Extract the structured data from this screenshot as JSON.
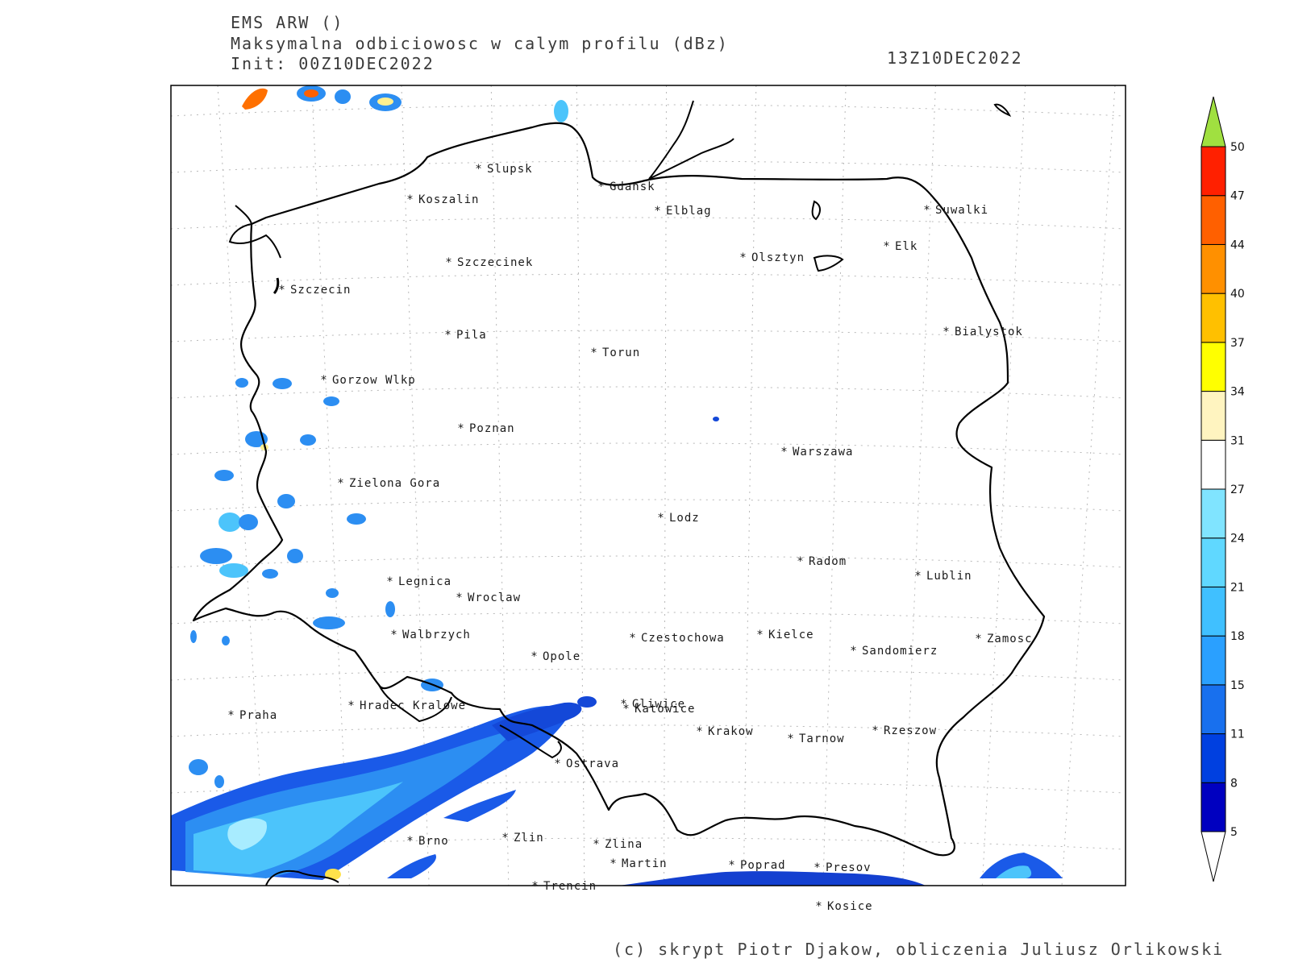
{
  "header": {
    "model": "EMS ARW ()",
    "variable": "Maksymalna odbiciowosc w calym profilu (dBz)",
    "init": "Init: 00Z10DEC2022",
    "valid_time": "13Z10DEC2022"
  },
  "footer": "(c) skrypt Piotr Djakow, obliczenia Juliusz Orlikowski",
  "colorbar": {
    "ticks": [
      "5",
      "8",
      "11",
      "15",
      "18",
      "21",
      "24",
      "27",
      "31",
      "34",
      "37",
      "40",
      "44",
      "47",
      "50"
    ],
    "colors": [
      "#0000c0",
      "#0040e0",
      "#1870ee",
      "#2aa0ff",
      "#40c0ff",
      "#60d8ff",
      "#80e4ff",
      "#ffffff",
      "#fff4c0",
      "#ffff00",
      "#ffc000",
      "#ff9000",
      "#ff6000",
      "#ff2000",
      "#d01010",
      "#b00000"
    ],
    "over_color": "#a0e040",
    "under_color": "#ffffff"
  },
  "cities": [
    {
      "name": "Slupsk"
    },
    {
      "name": "Koszalin"
    },
    {
      "name": "Gdansk"
    },
    {
      "name": "Elblag"
    },
    {
      "name": "Suwalki"
    },
    {
      "name": "Elk"
    },
    {
      "name": "Olsztyn"
    },
    {
      "name": "Szczecinek"
    },
    {
      "name": "Szczecin"
    },
    {
      "name": "Pila"
    },
    {
      "name": "Torun"
    },
    {
      "name": "Bialystok"
    },
    {
      "name": "Gorzow Wlkp"
    },
    {
      "name": "Poznan"
    },
    {
      "name": "Warszawa"
    },
    {
      "name": "Zielona Gora"
    },
    {
      "name": "Lodz"
    },
    {
      "name": "Radom"
    },
    {
      "name": "Lublin"
    },
    {
      "name": "Legnica"
    },
    {
      "name": "Wroclaw"
    },
    {
      "name": "Walbrzych"
    },
    {
      "name": "Czestochowa"
    },
    {
      "name": "Kielce"
    },
    {
      "name": "Zamosc"
    },
    {
      "name": "Opole"
    },
    {
      "name": "Sandomierz"
    },
    {
      "name": "Praha"
    },
    {
      "name": "Hradec Kralowe"
    },
    {
      "name": "Gliwice"
    },
    {
      "name": "Katowice"
    },
    {
      "name": "Krakow"
    },
    {
      "name": "Tarnow"
    },
    {
      "name": "Rzeszow"
    },
    {
      "name": "Ostrava"
    },
    {
      "name": "Brno"
    },
    {
      "name": "Zlin"
    },
    {
      "name": "Zlina"
    },
    {
      "name": "Martin"
    },
    {
      "name": "Poprad"
    },
    {
      "name": "Presov"
    },
    {
      "name": "Trencin"
    },
    {
      "name": "Kosice"
    }
  ]
}
